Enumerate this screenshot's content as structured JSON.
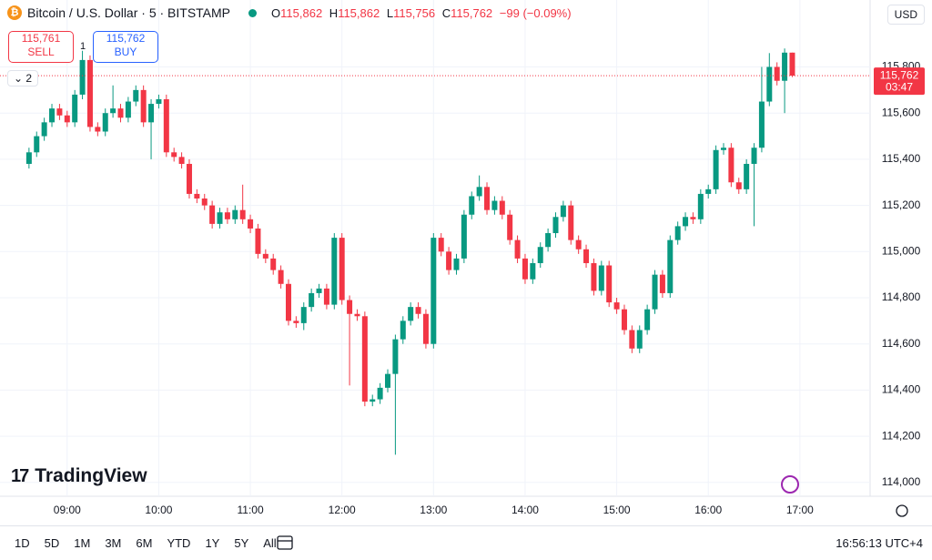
{
  "header": {
    "symbol": "Bitcoin / U.S. Dollar · 5 · BITSTAMP",
    "ohlc": [
      {
        "key": "O",
        "value": "115,862"
      },
      {
        "key": "H",
        "value": "115,862"
      },
      {
        "key": "L",
        "value": "115,756"
      },
      {
        "key": "C",
        "value": "115,762"
      }
    ],
    "change": "−99 (−0.09%)",
    "currency": "USD"
  },
  "trade": {
    "sell_price": "115,761",
    "sell": "SELL",
    "buy_price": "115,762",
    "buy": "BUY",
    "quantity": "1"
  },
  "indicators_count": "2",
  "logo": "TradingView",
  "toolbar": {
    "ranges": [
      "1D",
      "5D",
      "1M",
      "3M",
      "6M",
      "YTD",
      "1Y",
      "5Y",
      "All"
    ],
    "clock": "16:56:13 UTC+4"
  },
  "chart_data": {
    "type": "candlestick",
    "up_color": "#089981",
    "down_color": "#f23645",
    "grid": true,
    "xlim": [
      "08:16",
      "17:46"
    ],
    "ylim": [
      113940,
      116090
    ],
    "xticks": [
      "09:00",
      "10:00",
      "11:00",
      "12:00",
      "13:00",
      "14:00",
      "15:00",
      "16:00",
      "17:00"
    ],
    "yticks": [
      {
        "value": 114000,
        "label": "114,000"
      },
      {
        "value": 114200,
        "label": "114,200"
      },
      {
        "value": 114400,
        "label": "114,400"
      },
      {
        "value": 114600,
        "label": "114,600"
      },
      {
        "value": 114800,
        "label": "114,800"
      },
      {
        "value": 115000,
        "label": "115,000"
      },
      {
        "value": 115200,
        "label": "115,200"
      },
      {
        "value": 115400,
        "label": "115,400"
      },
      {
        "value": 115600,
        "label": "115,600"
      },
      {
        "value": 115800,
        "label": "115,800"
      }
    ],
    "last_price": {
      "value": 115762,
      "label": "115,762"
    },
    "countdown": "03:47",
    "x": [
      "08:35",
      "08:40",
      "08:45",
      "08:50",
      "08:55",
      "09:00",
      "09:05",
      "09:10",
      "09:15",
      "09:20",
      "09:25",
      "09:30",
      "09:35",
      "09:40",
      "09:45",
      "09:50",
      "09:55",
      "10:00",
      "10:05",
      "10:10",
      "10:15",
      "10:20",
      "10:25",
      "10:30",
      "10:35",
      "10:40",
      "10:45",
      "10:50",
      "10:55",
      "11:00",
      "11:05",
      "11:10",
      "11:15",
      "11:20",
      "11:25",
      "11:30",
      "11:35",
      "11:40",
      "11:45",
      "11:50",
      "11:55",
      "12:00",
      "12:05",
      "12:10",
      "12:15",
      "12:20",
      "12:25",
      "12:30",
      "12:35",
      "12:40",
      "12:45",
      "12:50",
      "12:55",
      "13:00",
      "13:05",
      "13:10",
      "13:15",
      "13:20",
      "13:25",
      "13:30",
      "13:35",
      "13:40",
      "13:45",
      "13:50",
      "13:55",
      "14:00",
      "14:05",
      "14:10",
      "14:15",
      "14:20",
      "14:25",
      "14:30",
      "14:35",
      "14:40",
      "14:45",
      "14:50",
      "14:55",
      "15:00",
      "15:05",
      "15:10",
      "15:15",
      "15:20",
      "15:25",
      "15:30",
      "15:35",
      "15:40",
      "15:45",
      "15:50",
      "15:55",
      "16:00",
      "16:05",
      "16:10",
      "16:15",
      "16:20",
      "16:25",
      "16:30",
      "16:35",
      "16:40",
      "16:45",
      "16:50",
      "16:55"
    ],
    "open": [
      115380,
      115430,
      115500,
      115560,
      115620,
      115590,
      115560,
      115680,
      115830,
      115540,
      115520,
      115600,
      115620,
      115580,
      115650,
      115700,
      115560,
      115640,
      115660,
      115430,
      115410,
      115380,
      115250,
      115230,
      115200,
      115120,
      115170,
      115140,
      115180,
      115140,
      115100,
      114990,
      114970,
      114920,
      114860,
      114700,
      114690,
      114760,
      114820,
      114840,
      114770,
      115060,
      114790,
      114730,
      114720,
      114350,
      114360,
      114410,
      114470,
      114620,
      114700,
      114760,
      114730,
      114600,
      115060,
      115000,
      114920,
      114970,
      115160,
      115240,
      115280,
      115180,
      115220,
      115160,
      115050,
      114970,
      114880,
      114950,
      115020,
      115080,
      115150,
      115200,
      115050,
      115010,
      114950,
      114830,
      114940,
      114780,
      114750,
      114660,
      114580,
      114660,
      114750,
      114900,
      114820,
      115050,
      115110,
      115150,
      115140,
      115250,
      115270,
      115440,
      115450,
      115300,
      115270,
      115380,
      115450,
      115650,
      115800,
      115740,
      115862
    ],
    "high": [
      115450,
      115520,
      115580,
      115640,
      115640,
      115610,
      115700,
      115870,
      115850,
      115560,
      115620,
      115720,
      115640,
      115670,
      115720,
      115720,
      115660,
      115680,
      115680,
      115450,
      115430,
      115400,
      115270,
      115250,
      115220,
      115190,
      115190,
      115200,
      115290,
      115160,
      115120,
      115010,
      114990,
      114940,
      114880,
      114720,
      114780,
      114840,
      114860,
      114860,
      115080,
      115080,
      114810,
      114750,
      114740,
      114380,
      114430,
      114490,
      114640,
      114720,
      114780,
      114780,
      114750,
      115080,
      115080,
      115020,
      114990,
      115180,
      115260,
      115330,
      115300,
      115240,
      115240,
      115180,
      115070,
      114990,
      114970,
      115040,
      115100,
      115170,
      115220,
      115220,
      115070,
      115030,
      114970,
      114960,
      114960,
      114800,
      114770,
      114680,
      114680,
      114770,
      114920,
      114920,
      115070,
      115130,
      115170,
      115170,
      115270,
      115290,
      115460,
      115470,
      115470,
      115320,
      115400,
      115470,
      115800,
      115860,
      115820,
      115880,
      115862
    ],
    "low": [
      115360,
      115410,
      115480,
      115540,
      115570,
      115540,
      115540,
      115660,
      115520,
      115500,
      115500,
      115580,
      115560,
      115560,
      115630,
      115540,
      115400,
      115620,
      115410,
      115390,
      115360,
      115230,
      115210,
      115180,
      115100,
      115100,
      115120,
      115120,
      115120,
      115080,
      114970,
      114950,
      114900,
      114840,
      114680,
      114670,
      114660,
      114740,
      114800,
      114750,
      114750,
      114770,
      114420,
      114700,
      114330,
      114330,
      114340,
      114390,
      114120,
      114600,
      114680,
      114710,
      114580,
      114580,
      114980,
      114900,
      114900,
      114950,
      115140,
      115220,
      115160,
      115160,
      115140,
      115030,
      114950,
      114860,
      114860,
      114930,
      115000,
      115060,
      115130,
      115030,
      114990,
      114930,
      114810,
      114810,
      114760,
      114730,
      114640,
      114560,
      114560,
      114640,
      114730,
      114800,
      114800,
      115030,
      115090,
      115120,
      115120,
      115230,
      115250,
      115420,
      115280,
      115250,
      115250,
      115110,
      115430,
      115630,
      115720,
      115600,
      115756
    ],
    "close": [
      115430,
      115500,
      115560,
      115620,
      115590,
      115560,
      115680,
      115830,
      115540,
      115520,
      115600,
      115620,
      115580,
      115650,
      115700,
      115560,
      115640,
      115660,
      115430,
      115410,
      115380,
      115250,
      115230,
      115200,
      115120,
      115170,
      115140,
      115180,
      115140,
      115100,
      114990,
      114970,
      114920,
      114860,
      114700,
      114690,
      114760,
      114820,
      114840,
      114770,
      115060,
      114790,
      114730,
      114720,
      114350,
      114360,
      114410,
      114470,
      114620,
      114700,
      114760,
      114730,
      114600,
      115060,
      115000,
      114920,
      114970,
      115160,
      115240,
      115280,
      115180,
      115220,
      115160,
      115050,
      114970,
      114880,
      114950,
      115020,
      115080,
      115150,
      115200,
      115050,
      115010,
      114950,
      114830,
      114940,
      114780,
      114750,
      114660,
      114580,
      114660,
      114750,
      114900,
      114820,
      115050,
      115110,
      115150,
      115140,
      115250,
      115270,
      115440,
      115450,
      115300,
      115270,
      115380,
      115450,
      115650,
      115800,
      115740,
      115862,
      115762
    ]
  }
}
